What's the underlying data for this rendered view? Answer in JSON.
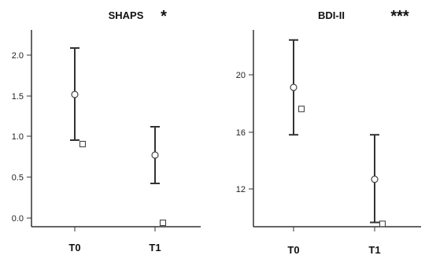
{
  "chart_data": [
    {
      "type": "scatter",
      "title": "SHAPS",
      "significance": "*",
      "categories": [
        "T0",
        "T1"
      ],
      "ylim": [
        -0.05,
        2.45
      ],
      "yticks": [
        "0.0",
        "0.5",
        "1.0",
        "1.5",
        "2.0"
      ],
      "grid": false,
      "series": [
        {
          "marker": "circle",
          "values": [
            1.63,
            0.86
          ],
          "lower": [
            1.05,
            0.5
          ],
          "upper": [
            2.22,
            1.22
          ]
        },
        {
          "marker": "square",
          "values": [
            1.0,
            0.0
          ]
        }
      ]
    },
    {
      "type": "scatter",
      "title": "BDI-II",
      "significance": "***",
      "categories": [
        "T0",
        "T1"
      ],
      "ylim": [
        9.8,
        23.5
      ],
      "yticks": [
        "12",
        "16",
        "20"
      ],
      "grid": false,
      "series": [
        {
          "marker": "circle",
          "values": [
            19.5,
            13.1
          ],
          "lower": [
            16.2,
            10.1
          ],
          "upper": [
            22.8,
            16.2
          ]
        },
        {
          "marker": "square",
          "values": [
            18.0,
            10.0
          ]
        }
      ]
    }
  ]
}
